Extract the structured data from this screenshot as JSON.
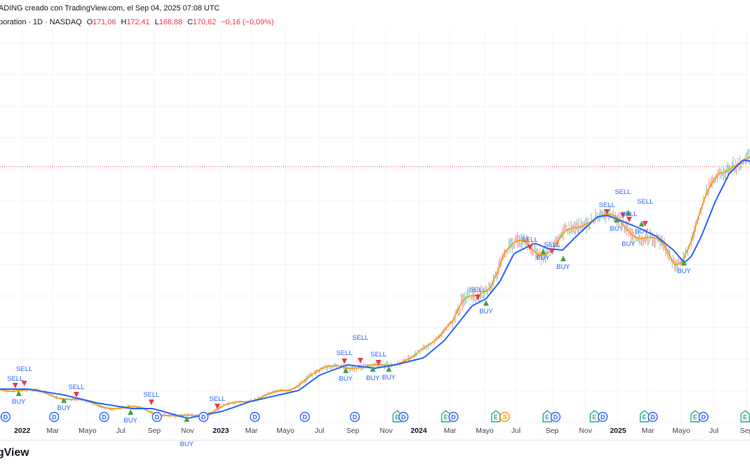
{
  "header": {
    "created_by": "ADING creado con TradingView.com, el Sep 04, 2025 07:08 UTC",
    "symbol": "poration · 1D · NASDAQ",
    "o_label": "O",
    "o": "171,06",
    "h_label": "H",
    "h": "172,41",
    "l_label": "L",
    "l": "168,88",
    "c_label": "C",
    "c": "170,62",
    "change": "−0,16 (−0,09%)"
  },
  "x_axis": [
    "2022",
    "Mar",
    "Mayo",
    "Jul",
    "Sep",
    "Nov",
    "2023",
    "Mar",
    "Mayo",
    "Jul",
    "Sep",
    "Nov",
    "2024",
    "Mar",
    "Mayo",
    "Jul",
    "Sep",
    "Nov",
    "2025",
    "Mar",
    "Mayo",
    "Jul",
    "Sep"
  ],
  "signals": [
    "SELL",
    "SELL",
    "BUY",
    "BUY",
    "SELL",
    "SELL",
    "BUY",
    "SELL",
    "SELL",
    "SELL",
    "SELL",
    "BUY",
    "BUY",
    "BUY",
    "SELL",
    "BUY",
    "SELL",
    "SELL",
    "BUY",
    "BUY",
    "SELL",
    "SELL",
    "BUY",
    "BUY",
    "SELL",
    "BUY",
    "SELL",
    "BUY",
    "BUY"
  ],
  "events": [
    "D",
    "D",
    "D",
    "D",
    "D",
    "D",
    "D",
    "D",
    "E",
    "D",
    "E",
    "D",
    "E",
    "S",
    "E",
    "D",
    "E",
    "D",
    "E",
    "D",
    "E",
    "D",
    "E"
  ],
  "brand": "dingView",
  "colors": {
    "up": "#26a69a",
    "down": "#ef5350",
    "ma_fast": "#ff9800",
    "ma_slow": "#2962ff",
    "buy": "#43a047",
    "sell": "#f23645",
    "dividend": "#2962ff",
    "earnings": "#22ab94",
    "split": "#ff9800",
    "text": "#2962ff"
  }
}
